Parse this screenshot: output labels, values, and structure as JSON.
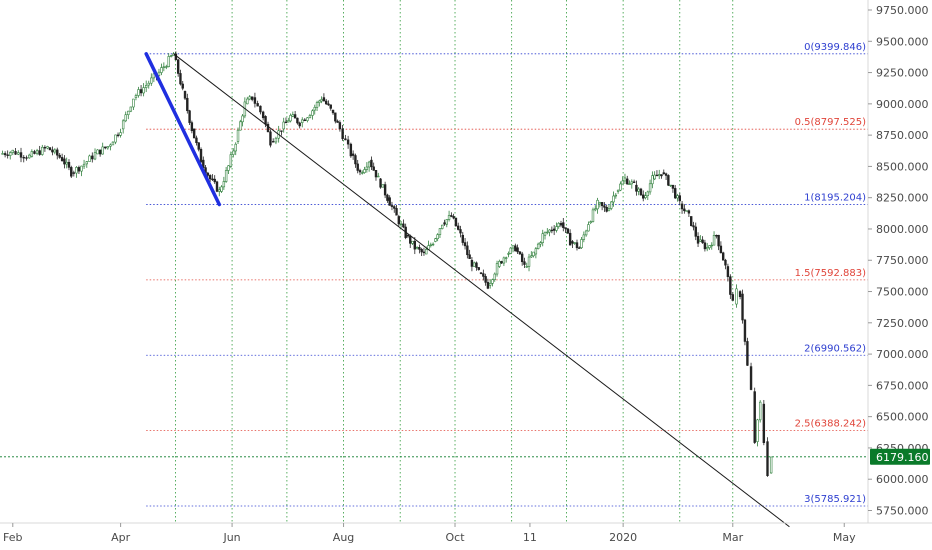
{
  "chart_data": {
    "type": "candlestick",
    "title": "",
    "xlabel": "",
    "ylabel": "",
    "ylim": [
      5650,
      9830
    ],
    "x_range": [
      "2019-01-25",
      "2020-05-14"
    ],
    "grid": "dotted green vertical lines at key dates",
    "x_ticks": [
      {
        "label": "Feb",
        "date": "2019-02-01"
      },
      {
        "label": "Apr",
        "date": "2019-04-01"
      },
      {
        "label": "Jun",
        "date": "2019-06-01"
      },
      {
        "label": "Aug",
        "date": "2019-08-01"
      },
      {
        "label": "Oct",
        "date": "2019-10-01"
      },
      {
        "label": "11",
        "date": "2019-11-11"
      },
      {
        "label": "2020",
        "date": "2020-01-01"
      },
      {
        "label": "Mar",
        "date": "2020-03-01"
      },
      {
        "label": "May",
        "date": "2020-05-01"
      }
    ],
    "y_ticks": [
      {
        "label": "9750.000",
        "value": 9750
      },
      {
        "label": "9500.000",
        "value": 9500
      },
      {
        "label": "9250.000",
        "value": 9250
      },
      {
        "label": "9000.000",
        "value": 9000
      },
      {
        "label": "8750.000",
        "value": 8750
      },
      {
        "label": "8500.000",
        "value": 8500
      },
      {
        "label": "8250.000",
        "value": 8250
      },
      {
        "label": "8000.000",
        "value": 8000
      },
      {
        "label": "7750.000",
        "value": 7750
      },
      {
        "label": "7500.000",
        "value": 7500
      },
      {
        "label": "7250.000",
        "value": 7250
      },
      {
        "label": "7000.000",
        "value": 7000
      },
      {
        "label": "6750.000",
        "value": 6750
      },
      {
        "label": "6500.000",
        "value": 6500
      },
      {
        "label": "6250.000",
        "value": 6250
      },
      {
        "label": "6000.000",
        "value": 6000
      },
      {
        "label": "5750.000",
        "value": 5750
      }
    ],
    "vertical_grid_dates": [
      "2019-05-01",
      "2019-06-01",
      "2019-07-01",
      "2019-08-01",
      "2019-09-01",
      "2019-10-01",
      "2019-11-01",
      "2019-12-01",
      "2020-01-01",
      "2020-02-01",
      "2020-03-01"
    ],
    "fib_start_date": "2019-04-15",
    "fib_levels": [
      {
        "label": "0(9399.846)",
        "value": 9399.846,
        "color": "#2e3fd0"
      },
      {
        "label": "0.5(8797.525)",
        "value": 8797.525,
        "color": "#e0453a"
      },
      {
        "label": "1(8195.204)",
        "value": 8195.204,
        "color": "#2e3fd0"
      },
      {
        "label": "1.5(7592.883)",
        "value": 7592.883,
        "color": "#e0453a"
      },
      {
        "label": "2(6990.562)",
        "value": 6990.562,
        "color": "#2e3fd0"
      },
      {
        "label": "2.5(6388.242)",
        "value": 6388.242,
        "color": "#e0453a"
      },
      {
        "label": "3(5785.921)",
        "value": 5785.921,
        "color": "#2e3fd0"
      }
    ],
    "trend_line": {
      "start": {
        "date": "2019-04-30",
        "value": 9399.846
      },
      "end": {
        "date": "2020-04-01",
        "value": 5620
      }
    },
    "blue_line": {
      "start": {
        "date": "2019-04-15",
        "value": 9399.846
      },
      "end": {
        "date": "2019-05-25",
        "value": 8195.204
      }
    },
    "current_price": {
      "label": "6179.160",
      "value": 6179.16,
      "color": "#0a7a2a"
    },
    "series_points": [
      [
        "2019-01-25",
        8600
      ],
      [
        "2019-02-01",
        8620
      ],
      [
        "2019-02-10",
        8580
      ],
      [
        "2019-02-20",
        8650
      ],
      [
        "2019-02-28",
        8560
      ],
      [
        "2019-03-05",
        8450
      ],
      [
        "2019-03-12",
        8520
      ],
      [
        "2019-03-18",
        8600
      ],
      [
        "2019-03-25",
        8660
      ],
      [
        "2019-04-01",
        8800
      ],
      [
        "2019-04-08",
        9050
      ],
      [
        "2019-04-15",
        9150
      ],
      [
        "2019-04-22",
        9250
      ],
      [
        "2019-04-30",
        9399
      ],
      [
        "2019-05-05",
        9100
      ],
      [
        "2019-05-10",
        8800
      ],
      [
        "2019-05-15",
        8550
      ],
      [
        "2019-05-20",
        8400
      ],
      [
        "2019-05-25",
        8300
      ],
      [
        "2019-05-30",
        8500
      ],
      [
        "2019-06-03",
        8700
      ],
      [
        "2019-06-08",
        9000
      ],
      [
        "2019-06-12",
        9050
      ],
      [
        "2019-06-18",
        8900
      ],
      [
        "2019-06-22",
        8700
      ],
      [
        "2019-06-28",
        8800
      ],
      [
        "2019-07-03",
        8900
      ],
      [
        "2019-07-08",
        8850
      ],
      [
        "2019-07-15",
        8950
      ],
      [
        "2019-07-20",
        9050
      ],
      [
        "2019-07-25",
        8950
      ],
      [
        "2019-07-30",
        8800
      ],
      [
        "2019-08-05",
        8600
      ],
      [
        "2019-08-10",
        8450
      ],
      [
        "2019-08-15",
        8550
      ],
      [
        "2019-08-20",
        8400
      ],
      [
        "2019-08-25",
        8250
      ],
      [
        "2019-08-30",
        8100
      ],
      [
        "2019-09-04",
        7950
      ],
      [
        "2019-09-09",
        7850
      ],
      [
        "2019-09-14",
        7800
      ],
      [
        "2019-09-19",
        7900
      ],
      [
        "2019-09-24",
        8050
      ],
      [
        "2019-09-29",
        8100
      ],
      [
        "2019-10-04",
        7950
      ],
      [
        "2019-10-09",
        7750
      ],
      [
        "2019-10-14",
        7650
      ],
      [
        "2019-10-19",
        7550
      ],
      [
        "2019-10-24",
        7700
      ],
      [
        "2019-10-29",
        7800
      ],
      [
        "2019-11-03",
        7850
      ],
      [
        "2019-11-08",
        7700
      ],
      [
        "2019-11-13",
        7800
      ],
      [
        "2019-11-18",
        7950
      ],
      [
        "2019-11-23",
        8000
      ],
      [
        "2019-11-28",
        8050
      ],
      [
        "2019-12-03",
        7900
      ],
      [
        "2019-12-08",
        7850
      ],
      [
        "2019-12-13",
        8050
      ],
      [
        "2019-12-18",
        8200
      ],
      [
        "2019-12-23",
        8150
      ],
      [
        "2019-12-28",
        8300
      ],
      [
        "2020-01-02",
        8400
      ],
      [
        "2020-01-07",
        8350
      ],
      [
        "2020-01-12",
        8250
      ],
      [
        "2020-01-17",
        8400
      ],
      [
        "2020-01-22",
        8450
      ],
      [
        "2020-01-27",
        8350
      ],
      [
        "2020-02-01",
        8200
      ],
      [
        "2020-02-06",
        8100
      ],
      [
        "2020-02-11",
        7900
      ],
      [
        "2020-02-16",
        7850
      ],
      [
        "2020-02-21",
        7950
      ],
      [
        "2020-02-26",
        7700
      ],
      [
        "2020-03-01",
        7400
      ],
      [
        "2020-03-03",
        7500
      ],
      [
        "2020-03-05",
        7480
      ],
      [
        "2020-03-09",
        6900
      ],
      [
        "2020-03-11",
        6700
      ],
      [
        "2020-03-13",
        6300
      ],
      [
        "2020-03-16",
        6600
      ],
      [
        "2020-03-18",
        6300
      ],
      [
        "2020-03-20",
        6050
      ],
      [
        "2020-03-22",
        6179
      ]
    ]
  }
}
